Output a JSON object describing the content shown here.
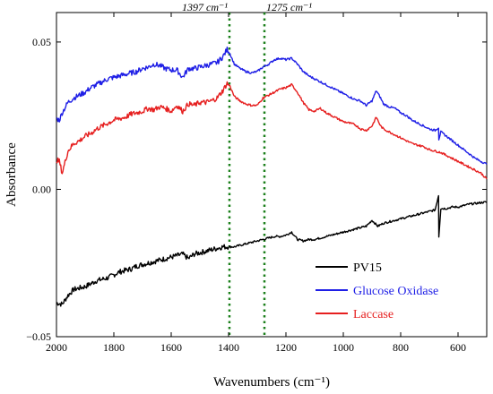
{
  "chart_data": {
    "type": "line",
    "xlabel": "Wavenumbers (cm⁻¹)",
    "ylabel": "Absorbance",
    "xlim": [
      2000,
      500
    ],
    "ylim": [
      -0.05,
      0.06
    ],
    "x_reversed": true,
    "x_ticks": [
      2000,
      1800,
      1600,
      1400,
      1200,
      1000,
      800,
      600
    ],
    "x_tick_labels": [
      "2000",
      "1800",
      "1600",
      "1400",
      "1200",
      "1000",
      "800",
      "600"
    ],
    "y_ticks": [
      -0.05,
      0.0,
      0.05
    ],
    "y_tick_labels": [
      "−0.05",
      "0.00",
      "0.05"
    ],
    "grid": false,
    "legend_position": "bottom-right",
    "annotations": [
      {
        "text": "1397 cm⁻¹",
        "x": 1397,
        "style": "dotted",
        "color": "#1a7f1a"
      },
      {
        "text": "1275 cm⁻¹",
        "x": 1275,
        "style": "dotted",
        "color": "#1a7f1a"
      }
    ],
    "series": [
      {
        "name": "PV15",
        "color": "#000000",
        "points": [
          [
            2000,
            -0.0385
          ],
          [
            1980,
            -0.039
          ],
          [
            1960,
            -0.036
          ],
          [
            1940,
            -0.034
          ],
          [
            1920,
            -0.0335
          ],
          [
            1900,
            -0.033
          ],
          [
            1880,
            -0.032
          ],
          [
            1860,
            -0.031
          ],
          [
            1840,
            -0.0305
          ],
          [
            1820,
            -0.03
          ],
          [
            1800,
            -0.029
          ],
          [
            1780,
            -0.028
          ],
          [
            1760,
            -0.0275
          ],
          [
            1740,
            -0.027
          ],
          [
            1720,
            -0.026
          ],
          [
            1700,
            -0.0255
          ],
          [
            1680,
            -0.025
          ],
          [
            1660,
            -0.0245
          ],
          [
            1640,
            -0.024
          ],
          [
            1620,
            -0.0235
          ],
          [
            1600,
            -0.023
          ],
          [
            1580,
            -0.0225
          ],
          [
            1560,
            -0.022
          ],
          [
            1540,
            -0.0235
          ],
          [
            1520,
            -0.022
          ],
          [
            1500,
            -0.0215
          ],
          [
            1480,
            -0.021
          ],
          [
            1460,
            -0.0205
          ],
          [
            1440,
            -0.02
          ],
          [
            1420,
            -0.0195
          ],
          [
            1400,
            -0.0195
          ],
          [
            1380,
            -0.0195
          ],
          [
            1360,
            -0.019
          ],
          [
            1340,
            -0.0185
          ],
          [
            1320,
            -0.018
          ],
          [
            1300,
            -0.0175
          ],
          [
            1280,
            -0.017
          ],
          [
            1260,
            -0.0165
          ],
          [
            1240,
            -0.016
          ],
          [
            1220,
            -0.016
          ],
          [
            1200,
            -0.0155
          ],
          [
            1180,
            -0.0145
          ],
          [
            1160,
            -0.017
          ],
          [
            1140,
            -0.0175
          ],
          [
            1120,
            -0.017
          ],
          [
            1100,
            -0.017
          ],
          [
            1080,
            -0.0165
          ],
          [
            1060,
            -0.016
          ],
          [
            1040,
            -0.0155
          ],
          [
            1020,
            -0.015
          ],
          [
            1000,
            -0.0145
          ],
          [
            980,
            -0.014
          ],
          [
            960,
            -0.0135
          ],
          [
            940,
            -0.013
          ],
          [
            920,
            -0.0125
          ],
          [
            900,
            -0.0105
          ],
          [
            880,
            -0.0125
          ],
          [
            860,
            -0.0115
          ],
          [
            840,
            -0.011
          ],
          [
            820,
            -0.0105
          ],
          [
            800,
            -0.01
          ],
          [
            780,
            -0.0095
          ],
          [
            760,
            -0.009
          ],
          [
            740,
            -0.0085
          ],
          [
            720,
            -0.008
          ],
          [
            700,
            -0.0075
          ],
          [
            680,
            -0.007
          ],
          [
            668,
            -0.002
          ],
          [
            667,
            -0.016
          ],
          [
            660,
            -0.0065
          ],
          [
            640,
            -0.0065
          ],
          [
            620,
            -0.006
          ],
          [
            600,
            -0.006
          ],
          [
            580,
            -0.0055
          ],
          [
            560,
            -0.005
          ],
          [
            540,
            -0.0048
          ],
          [
            520,
            -0.0045
          ],
          [
            500,
            -0.0043
          ]
        ]
      },
      {
        "name": "Glucose Oxidase",
        "color": "#1f1fe6",
        "points": [
          [
            2000,
            0.024
          ],
          [
            1990,
            0.0235
          ],
          [
            1980,
            0.026
          ],
          [
            1960,
            0.0295
          ],
          [
            1940,
            0.031
          ],
          [
            1920,
            0.032
          ],
          [
            1900,
            0.033
          ],
          [
            1880,
            0.0345
          ],
          [
            1860,
            0.0355
          ],
          [
            1840,
            0.0365
          ],
          [
            1820,
            0.0375
          ],
          [
            1800,
            0.038
          ],
          [
            1780,
            0.0385
          ],
          [
            1760,
            0.039
          ],
          [
            1740,
            0.0395
          ],
          [
            1720,
            0.04
          ],
          [
            1700,
            0.041
          ],
          [
            1680,
            0.0415
          ],
          [
            1660,
            0.0425
          ],
          [
            1640,
            0.042
          ],
          [
            1620,
            0.041
          ],
          [
            1600,
            0.0405
          ],
          [
            1580,
            0.0405
          ],
          [
            1560,
            0.038
          ],
          [
            1540,
            0.041
          ],
          [
            1520,
            0.041
          ],
          [
            1500,
            0.0415
          ],
          [
            1480,
            0.042
          ],
          [
            1460,
            0.0425
          ],
          [
            1440,
            0.043
          ],
          [
            1420,
            0.045
          ],
          [
            1405,
            0.0475
          ],
          [
            1395,
            0.046
          ],
          [
            1380,
            0.0425
          ],
          [
            1360,
            0.041
          ],
          [
            1340,
            0.04
          ],
          [
            1320,
            0.0395
          ],
          [
            1300,
            0.04
          ],
          [
            1280,
            0.0415
          ],
          [
            1260,
            0.0425
          ],
          [
            1240,
            0.044
          ],
          [
            1220,
            0.0445
          ],
          [
            1200,
            0.044
          ],
          [
            1180,
            0.0445
          ],
          [
            1160,
            0.0425
          ],
          [
            1140,
            0.04
          ],
          [
            1120,
            0.0385
          ],
          [
            1100,
            0.0375
          ],
          [
            1080,
            0.0365
          ],
          [
            1060,
            0.0355
          ],
          [
            1040,
            0.0345
          ],
          [
            1020,
            0.0335
          ],
          [
            1000,
            0.0325
          ],
          [
            980,
            0.0315
          ],
          [
            960,
            0.0305
          ],
          [
            940,
            0.03
          ],
          [
            920,
            0.0285
          ],
          [
            900,
            0.03
          ],
          [
            885,
            0.0335
          ],
          [
            870,
            0.031
          ],
          [
            860,
            0.029
          ],
          [
            840,
            0.028
          ],
          [
            820,
            0.0275
          ],
          [
            800,
            0.026
          ],
          [
            780,
            0.025
          ],
          [
            760,
            0.0235
          ],
          [
            740,
            0.0225
          ],
          [
            720,
            0.0215
          ],
          [
            700,
            0.0205
          ],
          [
            680,
            0.02
          ],
          [
            668,
            0.021
          ],
          [
            667,
            0.017
          ],
          [
            660,
            0.0195
          ],
          [
            640,
            0.018
          ],
          [
            620,
            0.0165
          ],
          [
            600,
            0.015
          ],
          [
            580,
            0.0135
          ],
          [
            560,
            0.012
          ],
          [
            540,
            0.0105
          ],
          [
            520,
            0.0095
          ],
          [
            500,
            0.0085
          ]
        ]
      },
      {
        "name": "Laccase",
        "color": "#e61f1f",
        "points": [
          [
            2000,
            0.01
          ],
          [
            1990,
            0.0095
          ],
          [
            1980,
            0.0055
          ],
          [
            1960,
            0.013
          ],
          [
            1940,
            0.0155
          ],
          [
            1920,
            0.0165
          ],
          [
            1900,
            0.018
          ],
          [
            1880,
            0.019
          ],
          [
            1860,
            0.0205
          ],
          [
            1840,
            0.0215
          ],
          [
            1820,
            0.0225
          ],
          [
            1800,
            0.0235
          ],
          [
            1780,
            0.024
          ],
          [
            1760,
            0.0245
          ],
          [
            1740,
            0.0255
          ],
          [
            1720,
            0.026
          ],
          [
            1700,
            0.0265
          ],
          [
            1680,
            0.0275
          ],
          [
            1660,
            0.027
          ],
          [
            1640,
            0.028
          ],
          [
            1620,
            0.0275
          ],
          [
            1600,
            0.0265
          ],
          [
            1580,
            0.0285
          ],
          [
            1560,
            0.0265
          ],
          [
            1540,
            0.029
          ],
          [
            1520,
            0.0285
          ],
          [
            1500,
            0.0295
          ],
          [
            1480,
            0.0295
          ],
          [
            1460,
            0.03
          ],
          [
            1440,
            0.031
          ],
          [
            1420,
            0.0335
          ],
          [
            1405,
            0.036
          ],
          [
            1395,
            0.035
          ],
          [
            1380,
            0.0315
          ],
          [
            1360,
            0.03
          ],
          [
            1340,
            0.029
          ],
          [
            1320,
            0.0285
          ],
          [
            1300,
            0.0285
          ],
          [
            1280,
            0.031
          ],
          [
            1260,
            0.032
          ],
          [
            1240,
            0.033
          ],
          [
            1220,
            0.034
          ],
          [
            1200,
            0.0345
          ],
          [
            1180,
            0.0355
          ],
          [
            1160,
            0.033
          ],
          [
            1140,
            0.0295
          ],
          [
            1120,
            0.027
          ],
          [
            1100,
            0.0265
          ],
          [
            1080,
            0.0275
          ],
          [
            1060,
            0.026
          ],
          [
            1040,
            0.025
          ],
          [
            1020,
            0.024
          ],
          [
            1000,
            0.023
          ],
          [
            980,
            0.0225
          ],
          [
            960,
            0.022
          ],
          [
            940,
            0.0205
          ],
          [
            920,
            0.02
          ],
          [
            900,
            0.0215
          ],
          [
            885,
            0.0245
          ],
          [
            870,
            0.0215
          ],
          [
            860,
            0.0205
          ],
          [
            840,
            0.0195
          ],
          [
            820,
            0.0185
          ],
          [
            800,
            0.0175
          ],
          [
            780,
            0.0165
          ],
          [
            760,
            0.0155
          ],
          [
            740,
            0.015
          ],
          [
            720,
            0.0145
          ],
          [
            700,
            0.0135
          ],
          [
            680,
            0.013
          ],
          [
            660,
            0.0125
          ],
          [
            640,
            0.0115
          ],
          [
            620,
            0.0105
          ],
          [
            600,
            0.0095
          ],
          [
            580,
            0.0085
          ],
          [
            560,
            0.0075
          ],
          [
            540,
            0.0065
          ],
          [
            520,
            0.0055
          ],
          [
            500,
            0.0035
          ]
        ]
      }
    ]
  }
}
